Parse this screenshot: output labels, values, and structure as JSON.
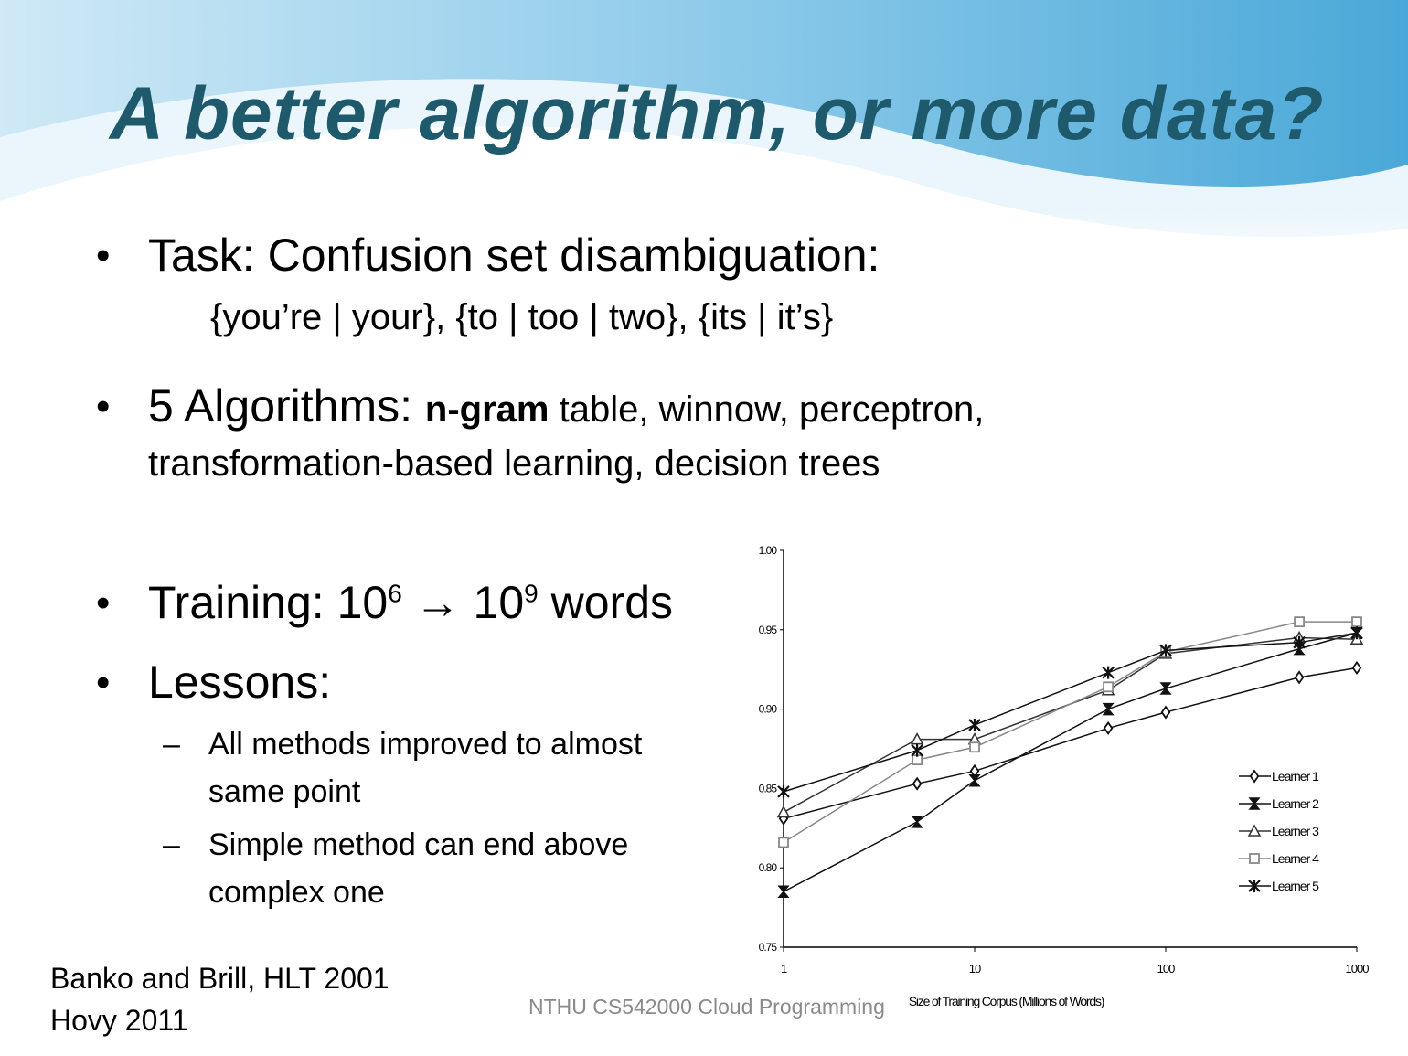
{
  "slide": {
    "title": "A better algorithm, or more data?",
    "bullets": [
      {
        "text": "Task: Confusion set disambiguation:",
        "sub": "{you’re | your}, {to | too | two}, {its | it’s}"
      },
      {
        "prefix": "5 Algorithms: ",
        "bold": "n-gram",
        "rest": " table, winnow, perceptron,",
        "line2": "transformation-based learning, decision trees"
      },
      {
        "prefix": "Training: 10",
        "sup1": "6",
        "arrow": " → 10",
        "sup2": "9",
        "suffix": " words"
      },
      {
        "text": "Lessons:",
        "subs": [
          {
            "line1": "All methods improved to almost",
            "line2": "same point"
          },
          {
            "line1": "Simple method can end above",
            "line2": "complex one"
          }
        ]
      }
    ],
    "bullet_glyph": "•",
    "dash_glyph": "–",
    "citation": [
      "Banko and Brill, HLT 2001",
      "Hovy 2011"
    ],
    "footer": "NTHU CS542000 Cloud Programming",
    "colors": {
      "title": "#1e5a6c",
      "wave": "#4aa8d8"
    }
  },
  "chart_data": {
    "type": "line",
    "xlabel": "Size of Training Corpus (Millions of Words)",
    "ylabel": "",
    "x_scale": "log",
    "x": [
      1,
      5,
      10,
      50,
      100,
      500,
      1000
    ],
    "xticks": [
      "1",
      "10",
      "100",
      "1000"
    ],
    "yticks": [
      "0.75",
      "0.80",
      "0.85",
      "0.90",
      "0.95",
      "1.00"
    ],
    "ylim": [
      0.75,
      1.0
    ],
    "xlim": [
      1,
      1000
    ],
    "grid": false,
    "legend_position": "right",
    "series": [
      {
        "name": "Learner 1",
        "marker": "diamond",
        "color": "#111111",
        "values": [
          0.831,
          0.853,
          0.861,
          0.888,
          0.898,
          0.92,
          0.926
        ]
      },
      {
        "name": "Learner 2",
        "marker": "hourglass",
        "color": "#111111",
        "values": [
          0.785,
          0.829,
          0.855,
          0.9,
          0.913,
          0.938,
          0.948
        ]
      },
      {
        "name": "Learner 3",
        "marker": "triangle",
        "color": "#333333",
        "values": [
          0.835,
          0.881,
          0.881,
          0.912,
          0.935,
          0.945,
          0.944
        ]
      },
      {
        "name": "Learner 4",
        "marker": "square",
        "color": "#888888",
        "values": [
          0.816,
          0.868,
          0.876,
          0.914,
          0.936,
          0.955,
          0.955
        ]
      },
      {
        "name": "Learner 5",
        "marker": "star",
        "color": "#111111",
        "values": [
          0.848,
          0.874,
          0.89,
          0.923,
          0.937,
          0.942,
          0.948
        ]
      }
    ]
  }
}
